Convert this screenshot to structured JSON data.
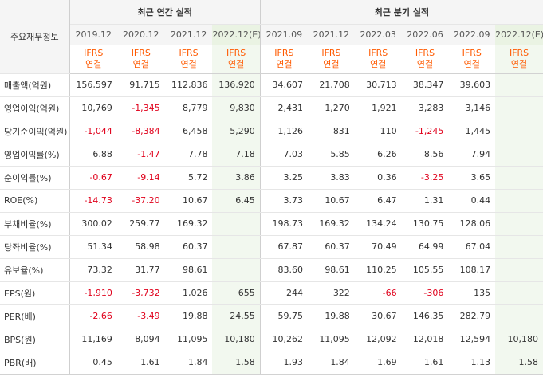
{
  "header": {
    "corner_label": "주요재무정보",
    "annual_group": "최근 연간 실적",
    "quarter_group": "최근 분기 실적"
  },
  "periods": [
    "2019.12",
    "2020.12",
    "2021.12",
    "2022.12(E)",
    "2021.09",
    "2021.12",
    "2022.03",
    "2022.06",
    "2022.09",
    "2022.12(E)"
  ],
  "types": [
    [
      "IFRS",
      "연결"
    ],
    [
      "IFRS",
      "연결"
    ],
    [
      "IFRS",
      "연결"
    ],
    [
      "IFRS",
      "연결"
    ],
    [
      "IFRS",
      "연결"
    ],
    [
      "IFRS",
      "연결"
    ],
    [
      "IFRS",
      "연결"
    ],
    [
      "IFRS",
      "연결"
    ],
    [
      "IFRS",
      "연결"
    ],
    [
      "IFRS",
      "연결"
    ]
  ],
  "rows": [
    {
      "label": "매출액(억원)",
      "values": [
        "156,597",
        "91,715",
        "112,836",
        "136,920",
        "34,607",
        "21,708",
        "30,713",
        "38,347",
        "39,603",
        ""
      ]
    },
    {
      "label": "영업이익(억원)",
      "values": [
        "10,769",
        "-1,345",
        "8,779",
        "9,830",
        "2,431",
        "1,270",
        "1,921",
        "3,283",
        "3,146",
        ""
      ]
    },
    {
      "label": "당기순이익(억원)",
      "values": [
        "-1,044",
        "-8,384",
        "6,458",
        "5,290",
        "1,126",
        "831",
        "110",
        "-1,245",
        "1,445",
        ""
      ]
    },
    {
      "label": "영업이익률(%)",
      "values": [
        "6.88",
        "-1.47",
        "7.78",
        "7.18",
        "7.03",
        "5.85",
        "6.26",
        "8.56",
        "7.94",
        ""
      ]
    },
    {
      "label": "순이익률(%)",
      "values": [
        "-0.67",
        "-9.14",
        "5.72",
        "3.86",
        "3.25",
        "3.83",
        "0.36",
        "-3.25",
        "3.65",
        ""
      ]
    },
    {
      "label": "ROE(%)",
      "values": [
        "-14.73",
        "-37.20",
        "10.67",
        "6.45",
        "3.73",
        "10.67",
        "6.47",
        "1.31",
        "0.44",
        ""
      ]
    },
    {
      "label": "부채비율(%)",
      "values": [
        "300.02",
        "259.77",
        "169.32",
        "",
        "198.73",
        "169.32",
        "134.24",
        "130.75",
        "128.06",
        ""
      ]
    },
    {
      "label": "당좌비율(%)",
      "values": [
        "51.34",
        "58.98",
        "60.37",
        "",
        "67.87",
        "60.37",
        "70.49",
        "64.99",
        "67.04",
        ""
      ]
    },
    {
      "label": "유보율(%)",
      "values": [
        "73.32",
        "31.77",
        "98.61",
        "",
        "83.60",
        "98.61",
        "110.25",
        "105.55",
        "108.17",
        ""
      ]
    },
    {
      "label": "EPS(원)",
      "values": [
        "-1,910",
        "-3,732",
        "1,026",
        "655",
        "244",
        "322",
        "-66",
        "-306",
        "135",
        ""
      ]
    },
    {
      "label": "PER(배)",
      "values": [
        "-2.66",
        "-3.49",
        "19.88",
        "24.55",
        "59.75",
        "19.88",
        "30.67",
        "146.35",
        "282.79",
        ""
      ]
    },
    {
      "label": "BPS(원)",
      "values": [
        "11,169",
        "8,094",
        "11,095",
        "10,180",
        "10,262",
        "11,095",
        "12,092",
        "12,018",
        "12,594",
        "10,180"
      ]
    },
    {
      "label": "PBR(배)",
      "values": [
        "0.45",
        "1.61",
        "1.84",
        "1.58",
        "1.93",
        "1.84",
        "1.69",
        "1.61",
        "1.13",
        "1.58"
      ]
    }
  ],
  "colors": {
    "negative": "#e0001b",
    "ifrs": "#ff5a00",
    "estimate_bg": "#f2f8ef"
  }
}
